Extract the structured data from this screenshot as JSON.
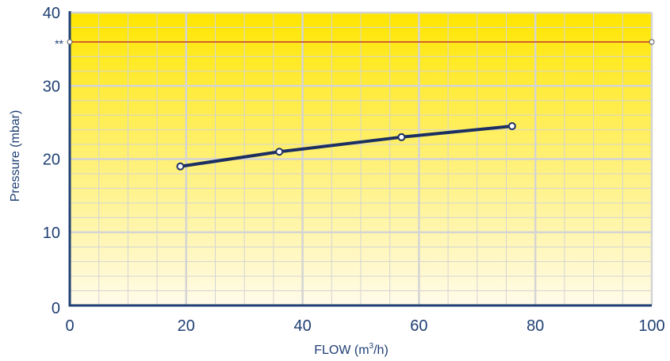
{
  "chart_data": {
    "type": "line",
    "xlabel": "FLOW (m",
    "xlabel_sup": "3",
    "xlabel_tail": "/h)",
    "ylabel": "Pressure (mbar)",
    "xlim": [
      0,
      100
    ],
    "ylim": [
      0,
      40
    ],
    "x_ticks": [
      "0",
      "20",
      "40",
      "60",
      "80",
      "100"
    ],
    "y_ticks": [
      "0",
      "10",
      "20",
      "30",
      "40"
    ],
    "grid": true,
    "series": [
      {
        "x": [
          19,
          36,
          57,
          76
        ],
        "y": [
          19,
          21,
          23,
          24.5
        ]
      }
    ],
    "reference_line": {
      "y": 36,
      "label": "**"
    },
    "colors": {
      "series": "#1b2f63",
      "reference": "#c0392b",
      "axis": "#1f3f73",
      "background_top": "#ffe600",
      "background_bottom": "#fffbea",
      "grid": "#d4d4d4"
    }
  }
}
